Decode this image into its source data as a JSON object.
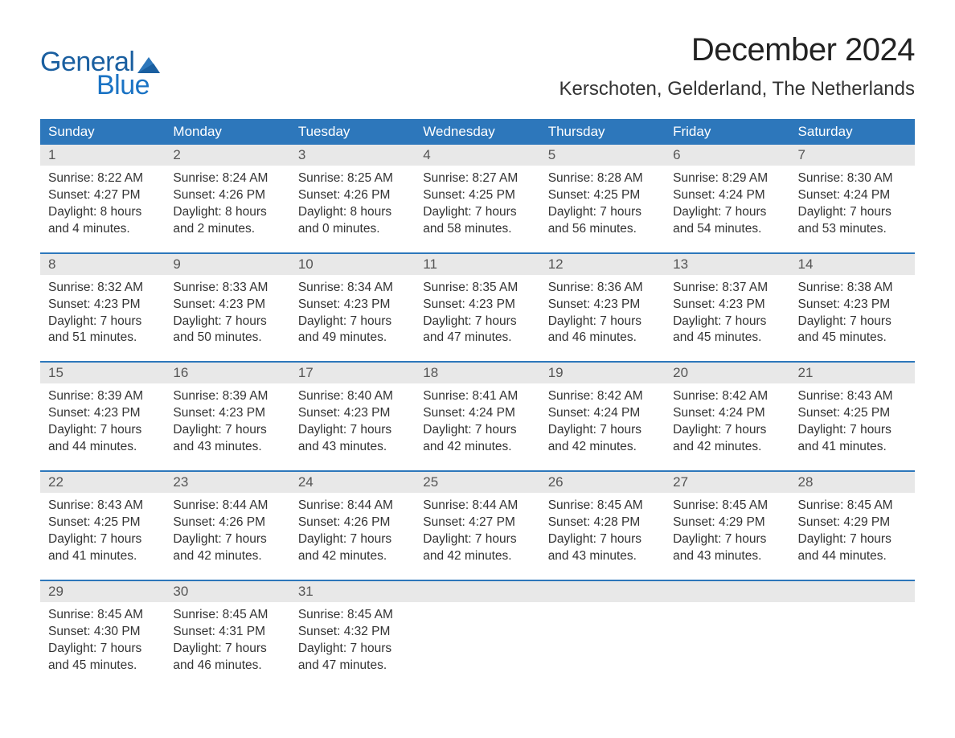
{
  "logo": {
    "top": "General",
    "bottom": "Blue",
    "text_color": "#1a5fa0",
    "triangle_color": "#2d77bb"
  },
  "title": "December 2024",
  "location": "Kerschoten, Gelderland, The Netherlands",
  "colors": {
    "header_bg": "#2d77bb",
    "header_text": "#ffffff",
    "daynum_bg": "#e8e8e8",
    "week_border": "#2d77bb",
    "body_text": "#333333"
  },
  "layout": {
    "columns": 7,
    "cell_fontsize_pt": 12,
    "header_fontsize_pt": 13
  },
  "day_headers": [
    "Sunday",
    "Monday",
    "Tuesday",
    "Wednesday",
    "Thursday",
    "Friday",
    "Saturday"
  ],
  "weeks": [
    [
      {
        "n": "1",
        "sunrise": "8:22 AM",
        "sunset": "4:27 PM",
        "dlh": "8",
        "dlm": "4"
      },
      {
        "n": "2",
        "sunrise": "8:24 AM",
        "sunset": "4:26 PM",
        "dlh": "8",
        "dlm": "2"
      },
      {
        "n": "3",
        "sunrise": "8:25 AM",
        "sunset": "4:26 PM",
        "dlh": "8",
        "dlm": "0"
      },
      {
        "n": "4",
        "sunrise": "8:27 AM",
        "sunset": "4:25 PM",
        "dlh": "7",
        "dlm": "58"
      },
      {
        "n": "5",
        "sunrise": "8:28 AM",
        "sunset": "4:25 PM",
        "dlh": "7",
        "dlm": "56"
      },
      {
        "n": "6",
        "sunrise": "8:29 AM",
        "sunset": "4:24 PM",
        "dlh": "7",
        "dlm": "54"
      },
      {
        "n": "7",
        "sunrise": "8:30 AM",
        "sunset": "4:24 PM",
        "dlh": "7",
        "dlm": "53"
      }
    ],
    [
      {
        "n": "8",
        "sunrise": "8:32 AM",
        "sunset": "4:23 PM",
        "dlh": "7",
        "dlm": "51"
      },
      {
        "n": "9",
        "sunrise": "8:33 AM",
        "sunset": "4:23 PM",
        "dlh": "7",
        "dlm": "50"
      },
      {
        "n": "10",
        "sunrise": "8:34 AM",
        "sunset": "4:23 PM",
        "dlh": "7",
        "dlm": "49"
      },
      {
        "n": "11",
        "sunrise": "8:35 AM",
        "sunset": "4:23 PM",
        "dlh": "7",
        "dlm": "47"
      },
      {
        "n": "12",
        "sunrise": "8:36 AM",
        "sunset": "4:23 PM",
        "dlh": "7",
        "dlm": "46"
      },
      {
        "n": "13",
        "sunrise": "8:37 AM",
        "sunset": "4:23 PM",
        "dlh": "7",
        "dlm": "45"
      },
      {
        "n": "14",
        "sunrise": "8:38 AM",
        "sunset": "4:23 PM",
        "dlh": "7",
        "dlm": "45"
      }
    ],
    [
      {
        "n": "15",
        "sunrise": "8:39 AM",
        "sunset": "4:23 PM",
        "dlh": "7",
        "dlm": "44"
      },
      {
        "n": "16",
        "sunrise": "8:39 AM",
        "sunset": "4:23 PM",
        "dlh": "7",
        "dlm": "43"
      },
      {
        "n": "17",
        "sunrise": "8:40 AM",
        "sunset": "4:23 PM",
        "dlh": "7",
        "dlm": "43"
      },
      {
        "n": "18",
        "sunrise": "8:41 AM",
        "sunset": "4:24 PM",
        "dlh": "7",
        "dlm": "42"
      },
      {
        "n": "19",
        "sunrise": "8:42 AM",
        "sunset": "4:24 PM",
        "dlh": "7",
        "dlm": "42"
      },
      {
        "n": "20",
        "sunrise": "8:42 AM",
        "sunset": "4:24 PM",
        "dlh": "7",
        "dlm": "42"
      },
      {
        "n": "21",
        "sunrise": "8:43 AM",
        "sunset": "4:25 PM",
        "dlh": "7",
        "dlm": "41"
      }
    ],
    [
      {
        "n": "22",
        "sunrise": "8:43 AM",
        "sunset": "4:25 PM",
        "dlh": "7",
        "dlm": "41"
      },
      {
        "n": "23",
        "sunrise": "8:44 AM",
        "sunset": "4:26 PM",
        "dlh": "7",
        "dlm": "42"
      },
      {
        "n": "24",
        "sunrise": "8:44 AM",
        "sunset": "4:26 PM",
        "dlh": "7",
        "dlm": "42"
      },
      {
        "n": "25",
        "sunrise": "8:44 AM",
        "sunset": "4:27 PM",
        "dlh": "7",
        "dlm": "42"
      },
      {
        "n": "26",
        "sunrise": "8:45 AM",
        "sunset": "4:28 PM",
        "dlh": "7",
        "dlm": "43"
      },
      {
        "n": "27",
        "sunrise": "8:45 AM",
        "sunset": "4:29 PM",
        "dlh": "7",
        "dlm": "43"
      },
      {
        "n": "28",
        "sunrise": "8:45 AM",
        "sunset": "4:29 PM",
        "dlh": "7",
        "dlm": "44"
      }
    ],
    [
      {
        "n": "29",
        "sunrise": "8:45 AM",
        "sunset": "4:30 PM",
        "dlh": "7",
        "dlm": "45"
      },
      {
        "n": "30",
        "sunrise": "8:45 AM",
        "sunset": "4:31 PM",
        "dlh": "7",
        "dlm": "46"
      },
      {
        "n": "31",
        "sunrise": "8:45 AM",
        "sunset": "4:32 PM",
        "dlh": "7",
        "dlm": "47"
      },
      null,
      null,
      null,
      null
    ]
  ],
  "labels": {
    "sunrise": "Sunrise: ",
    "sunset": "Sunset: ",
    "daylight1": "Daylight: ",
    "hours": " hours",
    "and": "and ",
    "minutes": " minutes."
  }
}
